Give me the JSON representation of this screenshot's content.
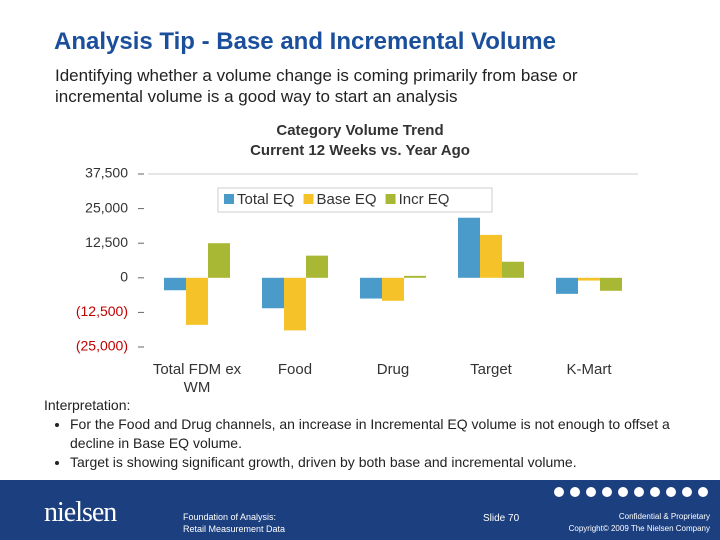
{
  "header": {
    "title": "Analysis Tip - Base and Incremental Volume",
    "intro": "Identifying whether a volume change is coming primarily from base or incremental volume is a good way to start an analysis"
  },
  "chart_data": {
    "type": "bar",
    "title": "Category Volume Trend",
    "subtitle": "Current 12 Weeks  vs. Year Ago",
    "categories": [
      "Total FDM ex WM",
      "Food",
      "Drug",
      "Target",
      "K-Mart"
    ],
    "series": [
      {
        "name": "Total EQ",
        "color": "#4a9bc9",
        "values": [
          -4500,
          -11000,
          -7500,
          21700,
          -5800
        ]
      },
      {
        "name": "Base EQ",
        "color": "#f5c329",
        "values": [
          -17000,
          -19000,
          -8300,
          15500,
          -1000
        ]
      },
      {
        "name": "Incr EQ",
        "color": "#a9b834",
        "values": [
          12500,
          8000,
          700,
          5800,
          -4700
        ]
      }
    ],
    "ylim": [
      -25000,
      37500
    ],
    "yticks": [
      {
        "value": -25000,
        "label": "(25,000)"
      },
      {
        "value": -12500,
        "label": "(12,500)"
      },
      0,
      {
        "value": 12500,
        "label": "12,500"
      },
      {
        "value": 25000,
        "label": "25,000"
      },
      {
        "value": 37500,
        "label": "37,500"
      }
    ],
    "legend": "top"
  },
  "interpretation": {
    "heading": "Interpretation:",
    "bullets": [
      "For the Food and Drug channels, an increase in Incremental EQ volume is not enough to offset a decline in Base EQ volume.",
      "Target is showing significant growth, driven by both base and incremental volume."
    ]
  },
  "footer": {
    "logo": "nielsen",
    "course": [
      "Foundation of Analysis:",
      "Retail Measurement Data"
    ],
    "slide": "Slide 70",
    "legal": [
      "Confidential & Proprietary",
      "Copyright© 2009 The Nielsen Company"
    ]
  }
}
